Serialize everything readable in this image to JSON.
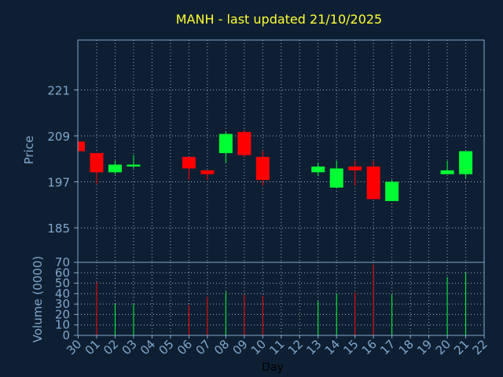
{
  "chart_data": {
    "type": "candlestick",
    "title": "MANH - last updated 21/10/2025",
    "xlabel": "Day",
    "price_ylabel": "Price",
    "volume_ylabel": "Volume (0000)",
    "x_tick_labels": [
      "30",
      "01",
      "02",
      "03",
      "04",
      "05",
      "06",
      "07",
      "08",
      "09",
      "10",
      "11",
      "12",
      "13",
      "14",
      "15",
      "16",
      "17",
      "18",
      "19",
      "20",
      "21",
      "22"
    ],
    "price_ylim": [
      176,
      234
    ],
    "price_ticks": [
      185,
      197,
      209,
      221
    ],
    "volume_ylim": [
      0,
      70
    ],
    "volume_ticks": [
      0,
      10,
      20,
      30,
      40,
      50,
      60,
      70
    ],
    "grid": true,
    "colors": {
      "background": "#0f1f33",
      "axes": "#7fa7cc",
      "grid": "#9bb0c4",
      "title": "#ffff33",
      "up": "#00ff33",
      "down": "#ff0000",
      "label": "#7fa7cc"
    },
    "candles": [
      {
        "x": 0,
        "open": 207.5,
        "high": 207.5,
        "low": 205.0,
        "close": 205.0
      },
      {
        "x": 1,
        "open": 204.5,
        "high": 204.5,
        "low": 196.5,
        "close": 199.5
      },
      {
        "x": 2,
        "open": 199.5,
        "high": 202.5,
        "low": 199.0,
        "close": 201.5
      },
      {
        "x": 3,
        "open": 201.0,
        "high": 204.0,
        "low": 200.5,
        "close": 201.5
      },
      {
        "x": 6,
        "open": 203.5,
        "high": 203.5,
        "low": 197.5,
        "close": 200.5
      },
      {
        "x": 7,
        "open": 200.0,
        "high": 200.0,
        "low": 197.5,
        "close": 199.0
      },
      {
        "x": 8,
        "open": 204.5,
        "high": 210.0,
        "low": 202.0,
        "close": 209.5
      },
      {
        "x": 9,
        "open": 210.0,
        "high": 210.5,
        "low": 203.5,
        "close": 204.0
      },
      {
        "x": 10,
        "open": 203.5,
        "high": 205.0,
        "low": 196.0,
        "close": 197.5
      },
      {
        "x": 13,
        "open": 199.5,
        "high": 202.0,
        "low": 198.5,
        "close": 201.0
      },
      {
        "x": 14,
        "open": 195.5,
        "high": 202.5,
        "low": 195.5,
        "close": 200.5
      },
      {
        "x": 15,
        "open": 201.0,
        "high": 202.5,
        "low": 196.0,
        "close": 200.0
      },
      {
        "x": 16,
        "open": 201.0,
        "high": 202.5,
        "low": 192.5,
        "close": 192.5
      },
      {
        "x": 17,
        "open": 192.0,
        "high": 197.5,
        "low": 192.0,
        "close": 197.0
      },
      {
        "x": 20,
        "open": 199.0,
        "high": 202.5,
        "low": 199.0,
        "close": 200.0
      },
      {
        "x": 21,
        "open": 199.0,
        "high": 205.0,
        "low": 198.0,
        "close": 205.0
      }
    ],
    "volume": [
      {
        "x": 1,
        "value": 51,
        "dir": "down"
      },
      {
        "x": 2,
        "value": 30,
        "dir": "up"
      },
      {
        "x": 3,
        "value": 30,
        "dir": "up"
      },
      {
        "x": 6,
        "value": 29,
        "dir": "down"
      },
      {
        "x": 7,
        "value": 37,
        "dir": "down"
      },
      {
        "x": 8,
        "value": 42,
        "dir": "up"
      },
      {
        "x": 9,
        "value": 39,
        "dir": "down"
      },
      {
        "x": 10,
        "value": 38,
        "dir": "down"
      },
      {
        "x": 13,
        "value": 33,
        "dir": "up"
      },
      {
        "x": 14,
        "value": 40,
        "dir": "up"
      },
      {
        "x": 15,
        "value": 41,
        "dir": "down"
      },
      {
        "x": 16,
        "value": 68,
        "dir": "down"
      },
      {
        "x": 17,
        "value": 39,
        "dir": "up"
      },
      {
        "x": 20,
        "value": 56,
        "dir": "up"
      },
      {
        "x": 21,
        "value": 60,
        "dir": "up"
      }
    ]
  }
}
